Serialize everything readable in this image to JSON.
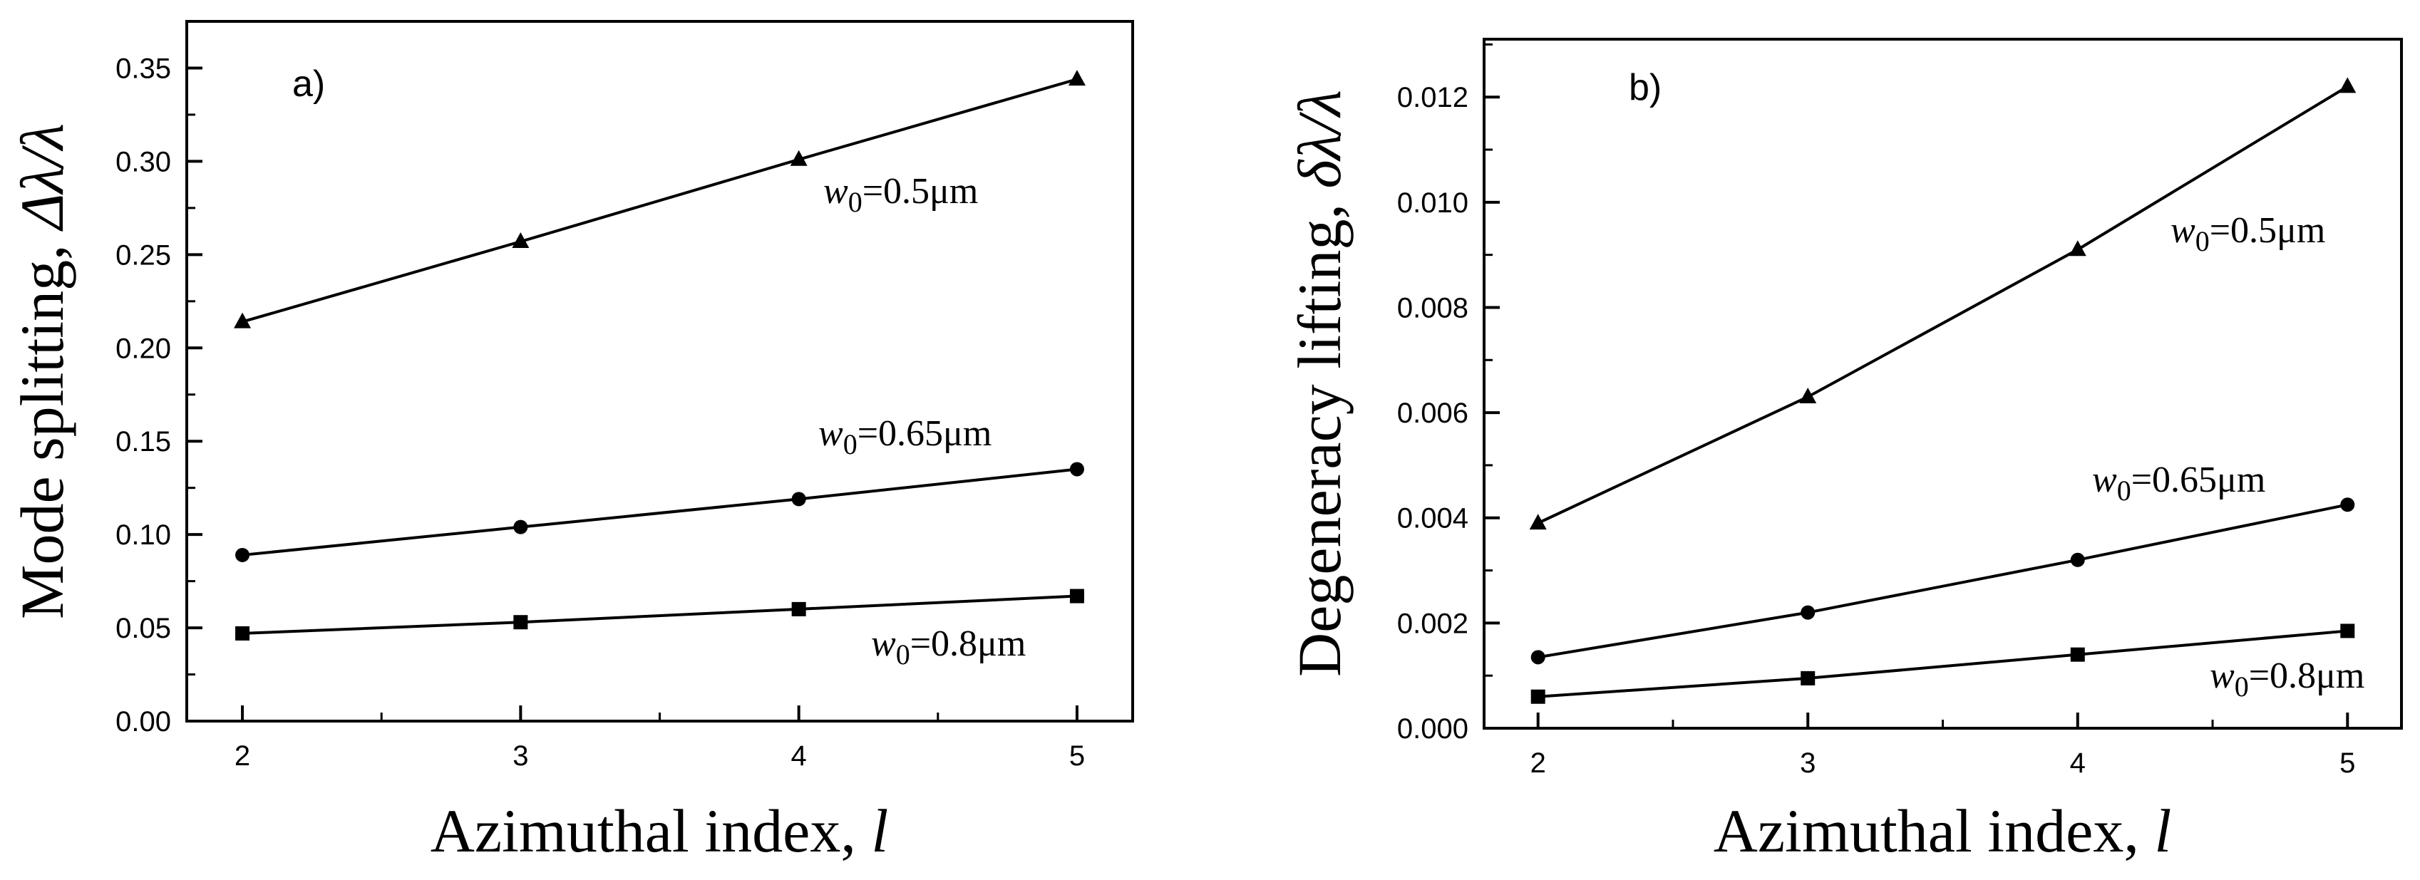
{
  "chart_data": [
    {
      "type": "line",
      "panel_label": "a)",
      "x": [
        2,
        3,
        4,
        5
      ],
      "xlim": [
        1.8,
        5.2
      ],
      "ylim": [
        0.0,
        0.375
      ],
      "xticks": [
        "2",
        "3",
        "4",
        "5"
      ],
      "yticks": [
        "0.00",
        "0.05",
        "0.10",
        "0.15",
        "0.20",
        "0.25",
        "0.30",
        "0.35"
      ],
      "xlabel_text": "Azimuthal index, ",
      "xlabel_sym": "l",
      "ylabel_text": "Mode splitting, ",
      "ylabel_sym": "Δλ/λ",
      "series": [
        {
          "name": "w0=0.5μm",
          "label_sym": "w",
          "label_sub": "0",
          "label_rest": "=0.5μm",
          "marker": "triangle",
          "values": [
            0.214,
            0.257,
            0.301,
            0.344
          ]
        },
        {
          "name": "w0=0.65μm",
          "label_sym": "w",
          "label_sub": "0",
          "label_rest": "=0.65μm",
          "marker": "circle",
          "values": [
            0.089,
            0.104,
            0.119,
            0.135
          ]
        },
        {
          "name": "w0=0.8μm",
          "label_sym": "w",
          "label_sub": "0",
          "label_rest": "=0.8μm",
          "marker": "square",
          "values": [
            0.047,
            0.053,
            0.06,
            0.067
          ]
        }
      ]
    },
    {
      "type": "line",
      "panel_label": "b)",
      "x": [
        2,
        3,
        4,
        5
      ],
      "xlim": [
        1.8,
        5.2
      ],
      "ylim": [
        0.0,
        0.0131
      ],
      "xticks": [
        "2",
        "3",
        "4",
        "5"
      ],
      "yticks": [
        "0.000",
        "0.002",
        "0.004",
        "0.006",
        "0.008",
        "0.010",
        "0.012"
      ],
      "xlabel_text": "Azimuthal index, ",
      "xlabel_sym": "l",
      "ylabel_text": "Degeneracy lifting, ",
      "ylabel_sym": "δλ/λ",
      "series": [
        {
          "name": "w0=0.5μm",
          "label_sym": "w",
          "label_sub": "0",
          "label_rest": "=0.5μm",
          "marker": "triangle",
          "values": [
            0.0039,
            0.0063,
            0.0091,
            0.0122
          ]
        },
        {
          "name": "w0=0.65μm",
          "label_sym": "w",
          "label_sub": "0",
          "label_rest": "=0.65μm",
          "marker": "circle",
          "values": [
            0.00135,
            0.0022,
            0.0032,
            0.00425
          ]
        },
        {
          "name": "w0=0.8μm",
          "label_sym": "w",
          "label_sub": "0",
          "label_rest": "=0.8μm",
          "marker": "square",
          "values": [
            0.0006,
            0.00095,
            0.0014,
            0.00185
          ]
        }
      ]
    }
  ]
}
